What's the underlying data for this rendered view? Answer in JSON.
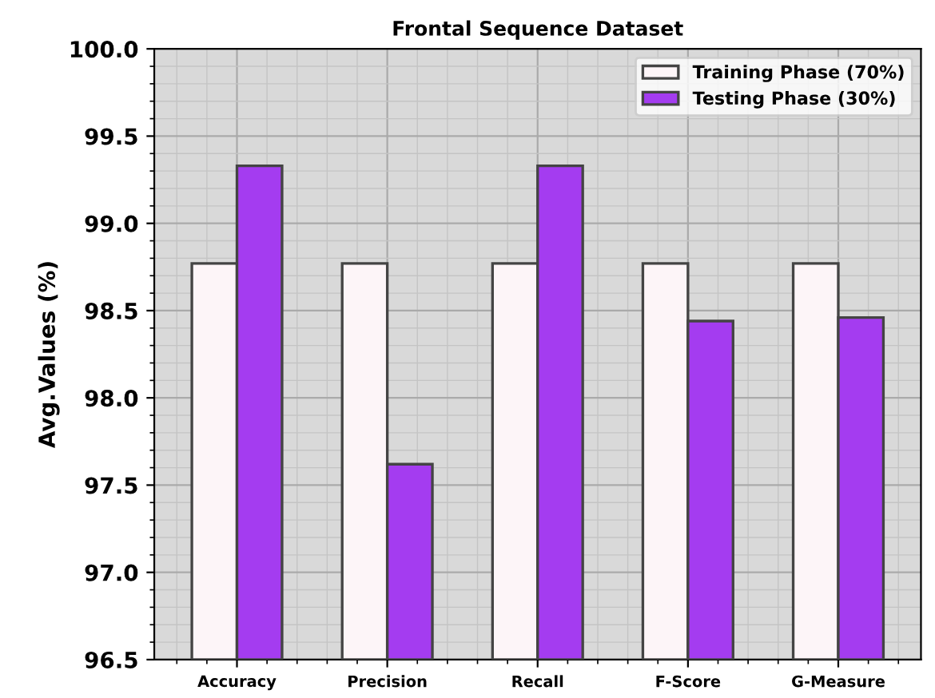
{
  "chart_data": {
    "type": "bar",
    "title": "Frontal Sequence Dataset",
    "ylabel": "Avg.Values (%)",
    "categories": [
      "Accuracy",
      "Precision",
      "Recall",
      "F-Score",
      "G-Measure"
    ],
    "series": [
      {
        "name": "Training Phase (70%)",
        "color": "#fdf5f8",
        "values": [
          98.77,
          98.77,
          98.77,
          98.77,
          98.77
        ]
      },
      {
        "name": "Testing Phase (30%)",
        "color": "#a43cf0",
        "values": [
          99.33,
          97.62,
          99.33,
          98.44,
          98.46
        ]
      }
    ],
    "ylim": [
      96.5,
      100.0
    ],
    "yticks": [
      96.5,
      {
        "value": 97,
        "label": "97.0"
      },
      97.5,
      {
        "value": 98,
        "label": "98.0"
      },
      98.5,
      {
        "value": 99,
        "label": "99.0"
      },
      99.5,
      {
        "value": 100,
        "label": "100.0"
      }
    ],
    "grid": true,
    "legend": "top right"
  }
}
